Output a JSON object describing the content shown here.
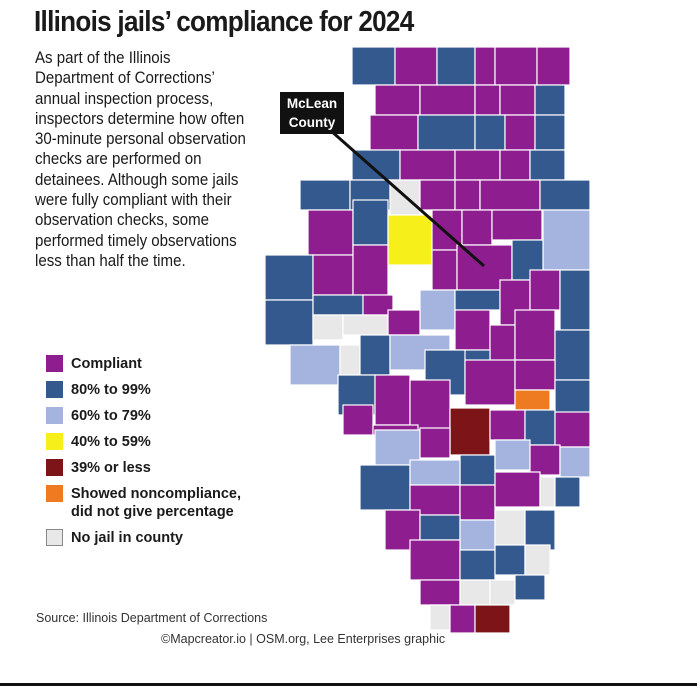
{
  "title": "Illinois jails’ compliance for 2024",
  "intro": "As part of the Illinois Department of Corrections’ annual inspection process, inspectors determine how often 30-minute personal observation checks are performed on detainees. Although some jails were fully compliant with their observation checks, some performed timely observations less than half the time.",
  "callout": {
    "line1": "McLean",
    "line2": "County"
  },
  "legend": [
    {
      "key": "compliant",
      "label": "Compliant",
      "color": "#8e1e8f"
    },
    {
      "key": "p80",
      "label": "80% to 99%",
      "color": "#34598f"
    },
    {
      "key": "p60",
      "label": "60% to 79%",
      "color": "#a4b4df"
    },
    {
      "key": "p40",
      "label": "40% to 59%",
      "color": "#f7ef1a"
    },
    {
      "key": "p39",
      "label": "39% or less",
      "color": "#7c1418"
    },
    {
      "key": "noncomp",
      "label": "Showed noncompliance, did not give percentage",
      "color": "#ee7a22"
    },
    {
      "key": "nojail",
      "label": "No jail in county",
      "color": "#e8e8e8"
    }
  ],
  "source": "Source: Illinois Department of Corrections",
  "credit": "©Mapcreator.io | OSM.org, Lee Enterprises graphic"
}
